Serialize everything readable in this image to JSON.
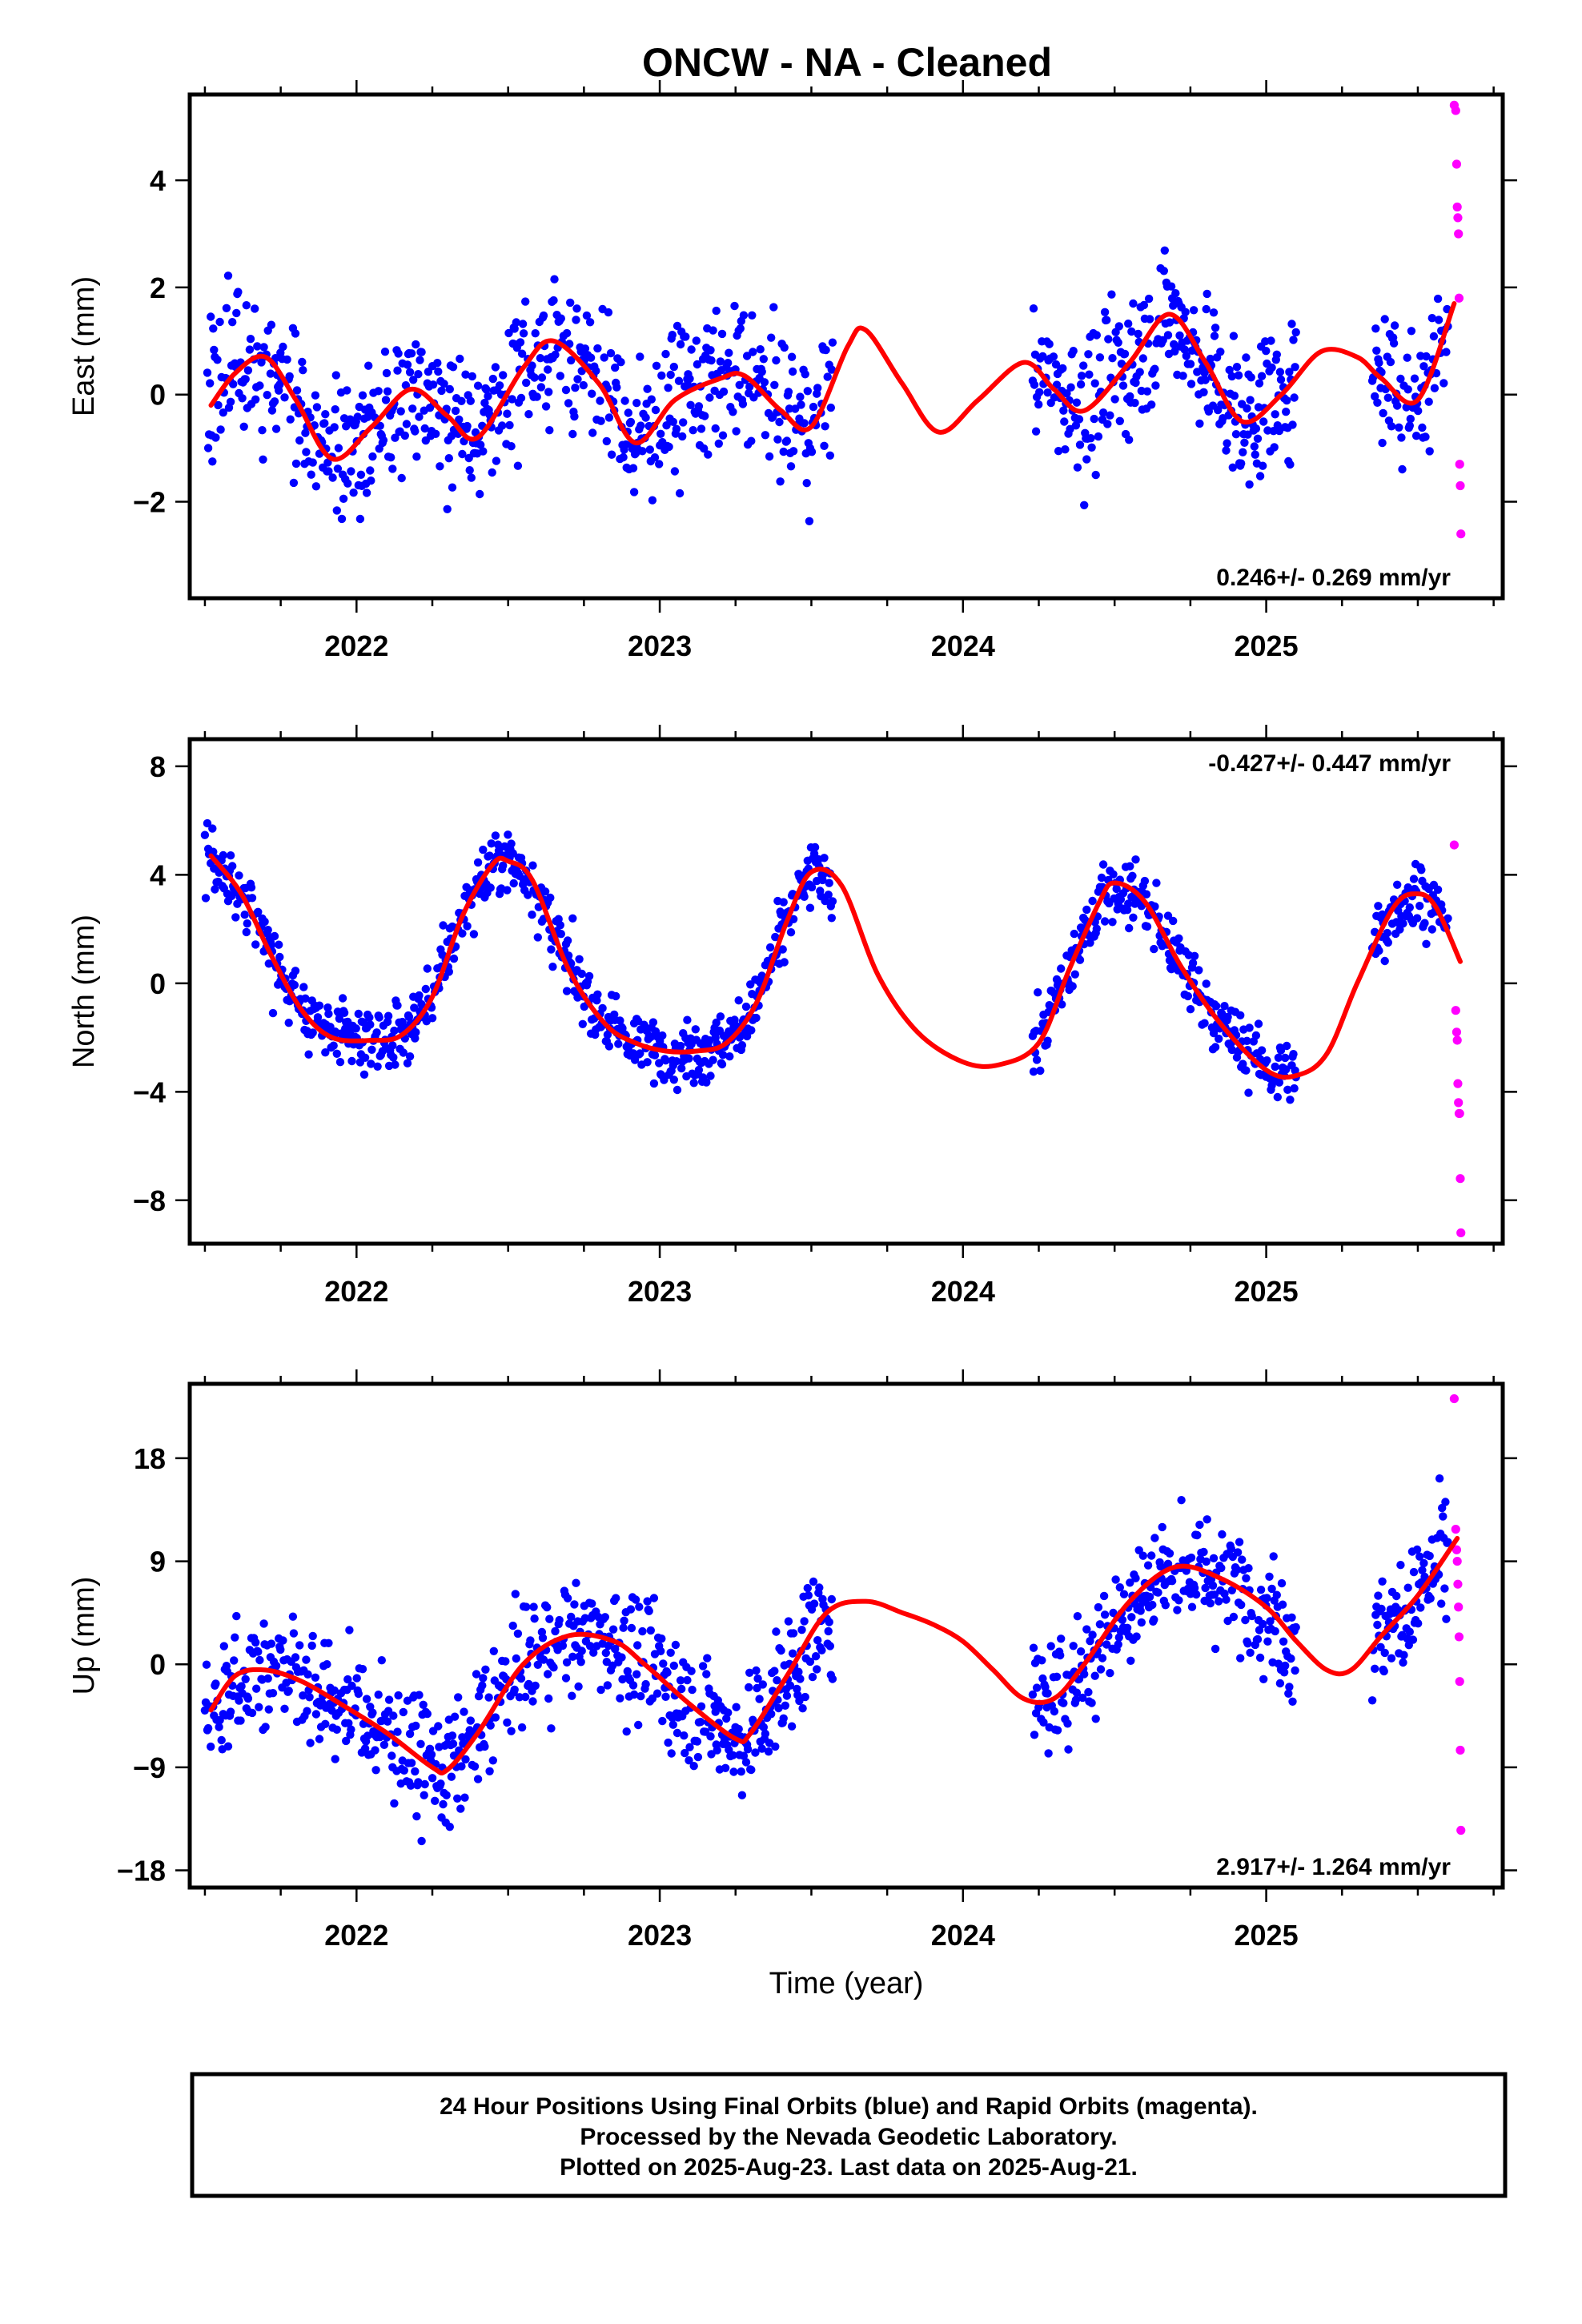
{
  "title": "ONCW  - NA - Cleaned",
  "colors": {
    "final": "#0000ff",
    "rapid": "#ff00ff",
    "model": "#ff0000",
    "frame": "#000000"
  },
  "footer": {
    "line1": "24 Hour Positions Using Final Orbits (blue) and Rapid Orbits (magenta).",
    "line2": "Processed by the Nevada Geodetic Laboratory.",
    "line3": "Plotted on 2025-Aug-23. Last data on 2025-Aug-21."
  },
  "chart_data": [
    {
      "type": "scatter",
      "id": "east",
      "ylabel": "East (mm)",
      "xlabel": "",
      "xlim": [
        2021.45,
        2025.78
      ],
      "ylim": [
        -3.8,
        5.6
      ],
      "xticks": [
        2022,
        2023,
        2024,
        2025
      ],
      "yticks": [
        -2,
        0,
        2,
        4
      ],
      "ytick_labels": [
        "−2",
        "0",
        "2",
        "4"
      ],
      "rate": "0.246+/- 0.269 mm/yr",
      "rate_position": "bottom-right",
      "grid": false,
      "model": {
        "x": [
          2021.52,
          2021.6,
          2021.7,
          2021.8,
          2021.92,
          2022.05,
          2022.18,
          2022.3,
          2022.4,
          2022.55,
          2022.65,
          2022.8,
          2022.92,
          2023.05,
          2023.2,
          2023.28,
          2023.4,
          2023.5,
          2023.62,
          2023.68,
          2023.8,
          2023.92,
          2024.05,
          2024.2,
          2024.3,
          2024.4,
          2024.55,
          2024.68,
          2024.8,
          2024.92,
          2025.05,
          2025.18,
          2025.3,
          2025.38,
          2025.5,
          2025.62
        ],
        "y": [
          -0.2,
          0.4,
          0.7,
          -0.1,
          -1.2,
          -0.6,
          0.1,
          -0.4,
          -0.8,
          0.5,
          1.0,
          0.2,
          -0.9,
          -0.1,
          0.3,
          0.35,
          -0.3,
          -0.6,
          0.9,
          1.2,
          0.2,
          -0.7,
          -0.1,
          0.6,
          0.1,
          -0.3,
          0.6,
          1.5,
          0.6,
          -0.5,
          0.0,
          0.8,
          0.7,
          0.3,
          -0.1,
          1.7
        ]
      },
      "final_summary": {
        "segments": [
          [
            2021.5,
            2023.57
          ],
          [
            2024.23,
            2025.1
          ],
          [
            2025.35,
            2025.6
          ]
        ],
        "trend_curve": "model",
        "scatter_sigma_mm": 0.9
      },
      "rapid_points": {
        "x": [
          2025.62,
          2025.625,
          2025.628,
          2025.63,
          2025.632,
          2025.634,
          2025.636,
          2025.638,
          2025.64,
          2025.642
        ],
        "y": [
          5.4,
          5.3,
          4.3,
          3.5,
          3.3,
          3.0,
          1.8,
          -1.3,
          -1.7,
          -2.6
        ]
      }
    },
    {
      "type": "scatter",
      "id": "north",
      "ylabel": "North (mm)",
      "xlabel": "",
      "xlim": [
        2021.45,
        2025.78
      ],
      "ylim": [
        -9.6,
        9.0
      ],
      "xticks": [
        2022,
        2023,
        2024,
        2025
      ],
      "yticks": [
        -8,
        -4,
        0,
        4,
        8
      ],
      "ytick_labels": [
        "−8",
        "−4",
        "0",
        "4",
        "8"
      ],
      "rate": "-0.427+/- 0.447 mm/yr",
      "rate_position": "top-right",
      "grid": false,
      "model": {
        "x": [
          2021.52,
          2021.62,
          2021.72,
          2021.82,
          2021.92,
          2022.05,
          2022.15,
          2022.25,
          2022.35,
          2022.45,
          2022.5,
          2022.58,
          2022.7,
          2022.82,
          2022.92,
          2023.02,
          2023.12,
          2023.22,
          2023.32,
          2023.42,
          2023.5,
          2023.6,
          2023.72,
          2023.85,
          2024.0,
          2024.12,
          2024.25,
          2024.35,
          2024.45,
          2024.5,
          2024.6,
          2024.72,
          2024.85,
          2025.0,
          2025.1,
          2025.2,
          2025.3,
          2025.42,
          2025.5,
          2025.56,
          2025.64
        ],
        "y": [
          4.7,
          3.3,
          1.0,
          -1.0,
          -2.0,
          -2.1,
          -1.9,
          -0.5,
          2.5,
          4.4,
          4.5,
          3.8,
          0.5,
          -1.5,
          -2.2,
          -2.5,
          -2.5,
          -2.2,
          -0.7,
          2.3,
          4.1,
          3.6,
          0.3,
          -1.8,
          -2.9,
          -3.0,
          -2.2,
          0.5,
          3.0,
          3.7,
          3.0,
          0.6,
          -1.5,
          -3.2,
          -3.4,
          -2.6,
          0.0,
          2.8,
          3.3,
          2.8,
          0.8
        ]
      },
      "final_summary": {
        "segments": [
          [
            2021.5,
            2023.57
          ],
          [
            2024.23,
            2025.1
          ],
          [
            2025.35,
            2025.6
          ]
        ],
        "trend_curve": "model",
        "scatter_sigma_mm": 0.8
      },
      "rapid_points": {
        "x": [
          2025.62,
          2025.625,
          2025.628,
          2025.63,
          2025.632,
          2025.634,
          2025.636,
          2025.638,
          2025.64,
          2025.642
        ],
        "y": [
          5.1,
          -1.0,
          -1.8,
          -2.1,
          -3.7,
          -4.4,
          -4.8,
          -4.8,
          -7.2,
          -9.2
        ]
      }
    },
    {
      "type": "scatter",
      "id": "up",
      "ylabel": "Up (mm)",
      "xlabel": "Time (year)",
      "xlim": [
        2021.45,
        2025.78
      ],
      "ylim": [
        -19.5,
        24.5
      ],
      "xticks": [
        2022,
        2023,
        2024,
        2025
      ],
      "yticks": [
        -18,
        -9,
        0,
        9,
        18
      ],
      "ytick_labels": [
        "−18",
        "−9",
        "0",
        "9",
        "18"
      ],
      "rate": "2.917+/- 1.264 mm/yr",
      "rate_position": "bottom-right",
      "grid": false,
      "model": {
        "x": [
          2021.52,
          2021.6,
          2021.7,
          2021.82,
          2021.95,
          2022.1,
          2022.25,
          2022.3,
          2022.4,
          2022.55,
          2022.7,
          2022.85,
          2022.95,
          2023.1,
          2023.25,
          2023.3,
          2023.42,
          2023.55,
          2023.68,
          2023.8,
          2023.9,
          2024.0,
          2024.1,
          2024.2,
          2024.3,
          2024.4,
          2024.55,
          2024.7,
          2024.85,
          2025.0,
          2025.1,
          2025.2,
          2025.28,
          2025.38,
          2025.5,
          2025.63
        ],
        "y": [
          -4.0,
          -1.0,
          -0.5,
          -1.5,
          -3.5,
          -6.0,
          -9.0,
          -9.2,
          -6.0,
          0.0,
          2.5,
          2.0,
          0.0,
          -3.5,
          -6.5,
          -6.0,
          -1.0,
          4.5,
          5.5,
          4.5,
          3.5,
          2.0,
          -0.5,
          -3.0,
          -3.0,
          0.0,
          5.5,
          8.5,
          7.5,
          5.0,
          2.0,
          -0.5,
          -0.5,
          2.5,
          6.0,
          11.0
        ]
      },
      "final_summary": {
        "segments": [
          [
            2021.5,
            2023.57
          ],
          [
            2024.23,
            2025.1
          ],
          [
            2025.35,
            2025.6
          ]
        ],
        "trend_curve": "model",
        "scatter_sigma_mm": 3.6
      },
      "rapid_points": {
        "x": [
          2025.62,
          2025.625,
          2025.628,
          2025.63,
          2025.632,
          2025.634,
          2025.636,
          2025.638,
          2025.64,
          2025.642
        ],
        "y": [
          23.2,
          11.8,
          10.0,
          9.0,
          7.0,
          5.0,
          2.4,
          -1.5,
          -7.5,
          -14.5
        ]
      }
    }
  ]
}
